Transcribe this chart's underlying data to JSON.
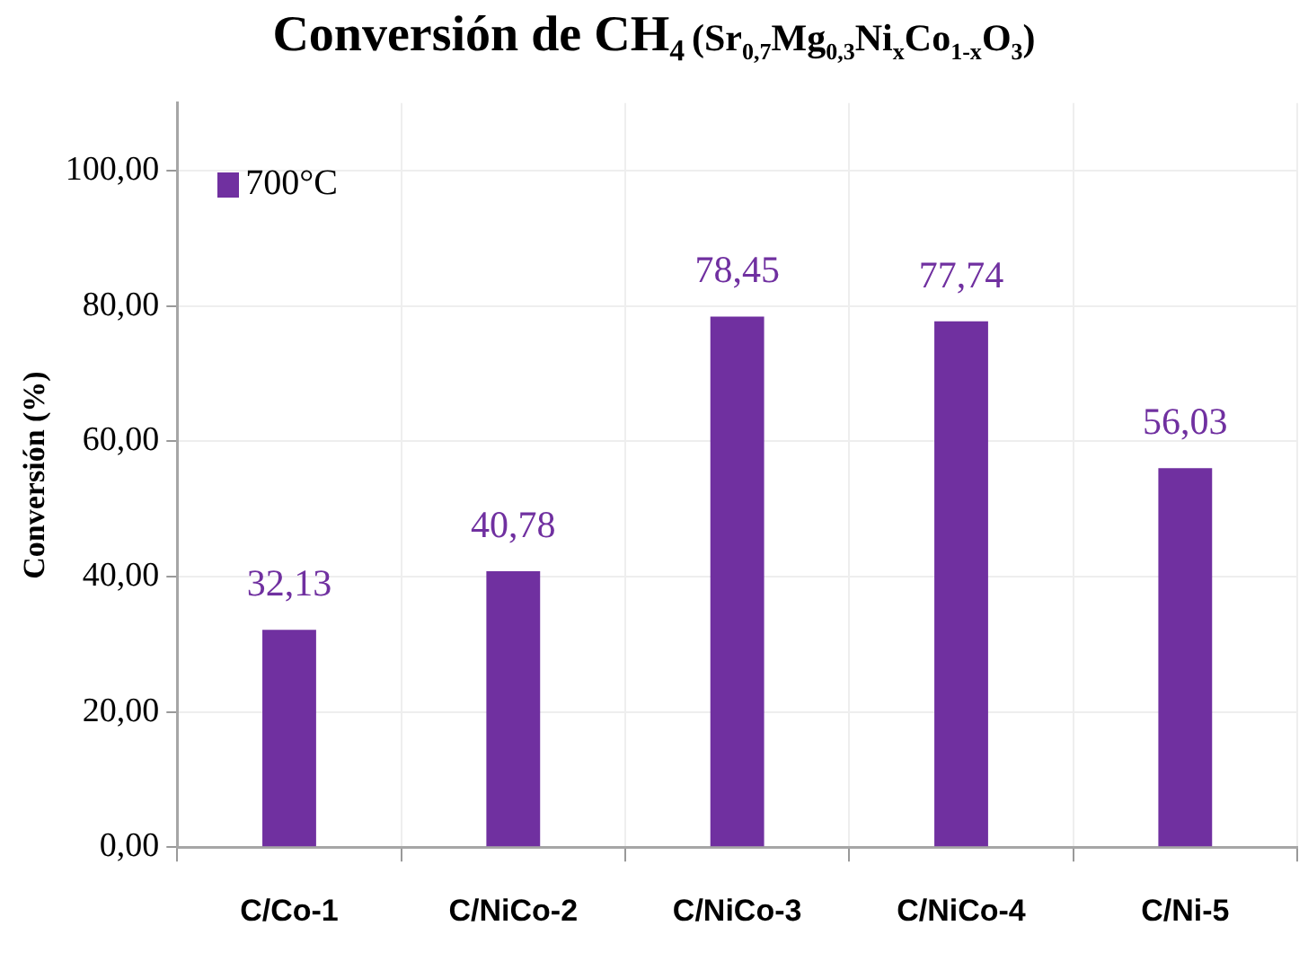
{
  "chart_data": {
    "type": "bar",
    "title": "Conversión de CH₄",
    "subtitle": "(Sr$_{0,7}$Mg$_{0,3}$Ni$_{x}$Co$_{1-x}$O$_{3}$)",
    "ylabel": "Conversión (%)",
    "categories": [
      "C/Co-1",
      "C/NiCo-2",
      "C/NiCo-3",
      "C/NiCo-4",
      "C/Ni-5"
    ],
    "series": [
      {
        "name": "700°C",
        "color": "#7030a0",
        "values": [
          32.13,
          40.78,
          78.45,
          77.74,
          56.03
        ],
        "value_labels": [
          "32,13",
          "40,78",
          "78,45",
          "77,74",
          "56,03"
        ]
      }
    ],
    "ylim": [
      0,
      110
    ],
    "yticks": [
      {
        "value": 0,
        "label": "0,00"
      },
      {
        "value": 20,
        "label": "20,00"
      },
      {
        "value": 40,
        "label": "40,00"
      },
      {
        "value": 60,
        "label": "60,00"
      },
      {
        "value": 80,
        "label": "80,00"
      },
      {
        "value": 100,
        "label": "100,00"
      }
    ],
    "grid": true,
    "legend": "top left"
  }
}
